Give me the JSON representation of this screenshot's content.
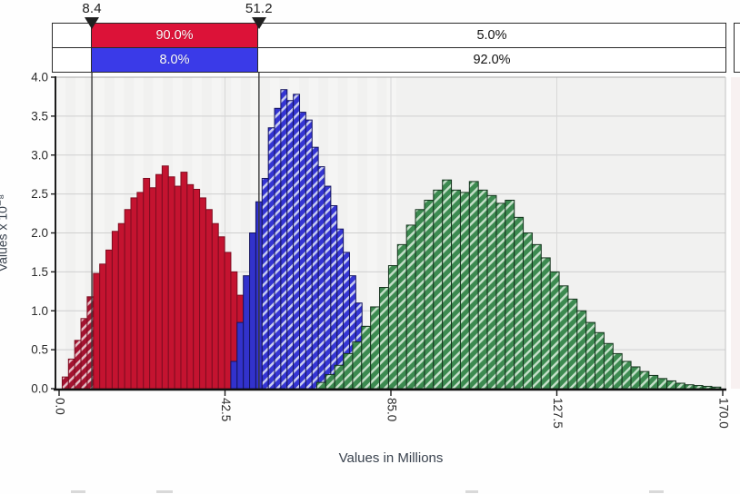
{
  "header": {
    "left_marker": "8.4",
    "right_marker": "51.2",
    "rows": [
      {
        "name": "red-probability-row",
        "mid": "90.0%",
        "right": "5.0%",
        "mid_color": "#dc1238"
      },
      {
        "name": "blue-probability-row",
        "mid": "8.0%",
        "right": "92.0%",
        "mid_color": "#3a3ae8"
      }
    ]
  },
  "chart_data": {
    "type": "bar",
    "subtype": "overlaid-histograms",
    "title": "",
    "xlabel": "Values in Millions",
    "ylabel": "Values x 10⁻⁸",
    "xlim": [
      0,
      170
    ],
    "ylim": [
      0,
      4
    ],
    "grid": true,
    "x_ticks": [
      {
        "v": 0,
        "label": "0.0"
      },
      {
        "v": 42.5,
        "label": "42.5"
      },
      {
        "v": 85,
        "label": "85.0"
      },
      {
        "v": 127.5,
        "label": "127.5"
      },
      {
        "v": 170,
        "label": "170.0"
      }
    ],
    "y_ticks": [
      {
        "v": 4,
        "label": "4.0"
      },
      {
        "v": 3.5,
        "label": "3.5"
      },
      {
        "v": 3,
        "label": "3.0"
      },
      {
        "v": 2.5,
        "label": "2.5"
      },
      {
        "v": 2,
        "label": "2.0"
      },
      {
        "v": 1.5,
        "label": "1.5"
      },
      {
        "v": 1,
        "label": "1.0"
      },
      {
        "v": 0.5,
        "label": "0.5"
      }
    ],
    "delimiters": {
      "left": 8.4,
      "right": 51.2
    },
    "region_probabilities": {
      "red": {
        "between_delimiters": "90.0%",
        "right_of_delimiters": "5.0%"
      },
      "blue": {
        "between_delimiters": "8.0%",
        "right_of_delimiters": "92.0%"
      }
    },
    "series": [
      {
        "name": "red-distribution",
        "solid_fill": "#c41330",
        "hatch_base": "#a31230",
        "hatch_stripe": "#e4bcc4",
        "edge": "#7e0c20",
        "start": 0.8,
        "bin_width": 1.6,
        "heights": [
          0.15,
          0.38,
          0.62,
          0.9,
          1.18,
          1.48,
          1.6,
          1.78,
          2.02,
          2.12,
          2.3,
          2.45,
          2.52,
          2.7,
          2.58,
          2.75,
          2.86,
          2.72,
          2.6,
          2.78,
          2.62,
          2.56,
          2.45,
          2.3,
          2.12,
          1.95,
          1.75,
          1.5,
          1.2,
          0.85,
          0.52,
          0.28,
          0.1
        ]
      },
      {
        "name": "blue-distribution",
        "solid_fill": "#3232cc",
        "hatch_base": "#3434d2",
        "hatch_stripe": "#c9cdf2",
        "edge": "#15155e",
        "start": 44,
        "bin_width": 1.6,
        "heights": [
          0.35,
          0.85,
          1.45,
          2.0,
          2.4,
          2.7,
          3.35,
          3.6,
          3.84,
          3.7,
          3.78,
          3.55,
          3.45,
          3.1,
          2.85,
          2.6,
          2.35,
          2.05,
          1.75,
          1.45,
          1.1,
          0.8,
          0.5,
          0.22
        ]
      },
      {
        "name": "green-distribution",
        "solid_fill": "#3e8c52",
        "hatch_base": "#3c8a50",
        "hatch_stripe": "#c4e0c9",
        "edge": "#14321c",
        "start": 66,
        "bin_width": 2.3,
        "heights": [
          0.08,
          0.18,
          0.3,
          0.45,
          0.6,
          0.8,
          1.05,
          1.3,
          1.58,
          1.85,
          2.1,
          2.3,
          2.42,
          2.55,
          2.68,
          2.55,
          2.52,
          2.66,
          2.55,
          2.48,
          2.38,
          2.42,
          2.2,
          2.0,
          1.85,
          1.68,
          1.5,
          1.32,
          1.15,
          1.0,
          0.85,
          0.72,
          0.58,
          0.45,
          0.35,
          0.28,
          0.22,
          0.17,
          0.13,
          0.1,
          0.07,
          0.05,
          0.04,
          0.03,
          0.02
        ]
      }
    ]
  }
}
